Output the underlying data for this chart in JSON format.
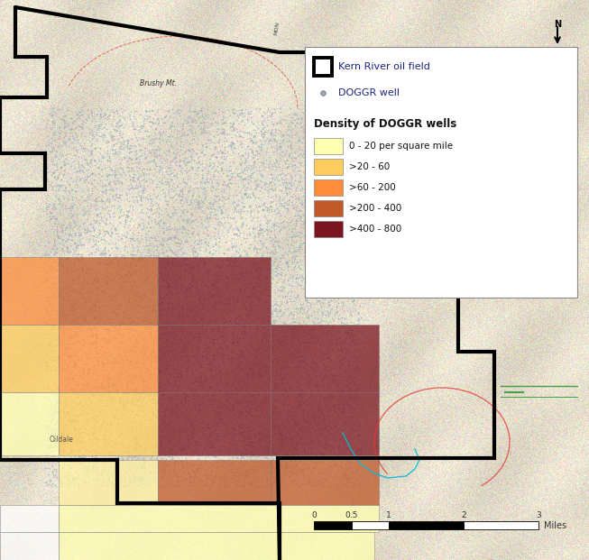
{
  "bg_color": "#e8e0d0",
  "legend_title": "Density of DOGGR wells",
  "legend_items": [
    {
      "label": "0 - 20 per square mile",
      "color": "#ffffb2"
    },
    {
      "label": ">20 - 60",
      "color": "#fecc5c"
    },
    {
      "label": ">60 - 200",
      "color": "#fd8d3c"
    },
    {
      "label": ">200 - 400",
      "color": "#c0592a"
    },
    {
      "label": ">400 - 800",
      "color": "#7b1520"
    }
  ],
  "scalebar_label": "Miles",
  "field_boundary_color": "#000000",
  "field_boundary_lw": 3.0,
  "well_dot_color": "#9aaabb",
  "well_dot_size": 1.5,
  "density_grid_alpha": 0.75,
  "colors": {
    "white": "#ffffff",
    "yellow": "#ffffb2",
    "light_yellow": "#fef0a0",
    "light_orange": "#fecc5c",
    "orange": "#fd8d3c",
    "brown": "#c0592a",
    "dark_red": "#7b1520"
  },
  "contour_cyan": "#00bcd4",
  "contour_red": "#e53935",
  "contour_green": "#43a047",
  "terrain_color": [
    0.9,
    0.87,
    0.8
  ],
  "terrain_std": 0.05
}
